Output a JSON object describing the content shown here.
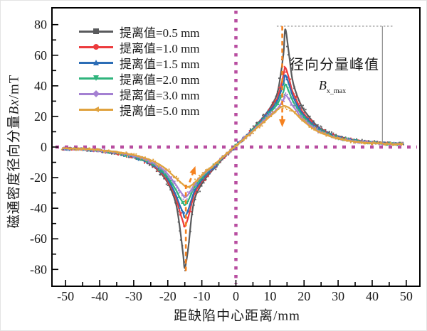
{
  "chart_data": {
    "type": "line",
    "title": "",
    "xlabel": "距缺陷中心距离/mm",
    "ylabel": "磁通密度径向分量Bx/mT",
    "ylabel_parts": {
      "prefix": "磁通密度径向分量",
      "math": "Bx",
      "suffix": "/mT"
    },
    "xlim": [
      -54,
      54
    ],
    "ylim": [
      -91,
      91
    ],
    "x_ticks": [
      -50,
      -40,
      -30,
      -20,
      -10,
      0,
      10,
      20,
      30,
      40,
      50
    ],
    "y_ticks": [
      -80,
      -60,
      -40,
      -20,
      0,
      20,
      40,
      60,
      80
    ],
    "x_minor_step": 5,
    "y_minor_step": 10,
    "grid": false,
    "legend_position": "top-left-inside",
    "axis_color": "#000000",
    "tick_label_color": "#1a1a1a",
    "crosshair": {
      "x": 0,
      "y": 0,
      "color": "#b84da0"
    },
    "annotation": {
      "label": "径向分量峰值",
      "symbol": "B",
      "symbol_sub": "x_max",
      "peak_level": 79,
      "dotted_line_x_range": [
        12,
        46
      ],
      "vertical_line_x": 43,
      "vertical_line_y_range": [
        2.6,
        79
      ],
      "color": "#8f8f8f"
    },
    "arrows": {
      "color": "#f58220",
      "items": [
        {
          "x1": 13.6,
          "y1": 79,
          "x2": 13.6,
          "y2": 13,
          "head": "end"
        },
        {
          "x1": -14.7,
          "y1": -81,
          "x2": -14.7,
          "y2": -24,
          "head": "none"
        },
        {
          "x1": -13.6,
          "y1": -23,
          "x2": -11.9,
          "y2": -12.5,
          "head": "end"
        }
      ]
    },
    "series": [
      {
        "name": "提离值=0.5 mm",
        "color": "#595a5c",
        "marker": "square",
        "x": [
          -51,
          -45,
          -40,
          -35,
          -30,
          -27,
          -24,
          -21,
          -19,
          -17.5,
          -16.5,
          -15.5,
          -15,
          -14,
          -13,
          -12,
          -10,
          -8,
          -6,
          -4,
          -2,
          0,
          2,
          4,
          6,
          8,
          10,
          12,
          13,
          14,
          14.5,
          15.5,
          16.5,
          17.5,
          19,
          21,
          24,
          27,
          30,
          35,
          40,
          45,
          49
        ],
        "y": [
          -1,
          -1.5,
          -2.5,
          -4,
          -6.5,
          -9,
          -13,
          -20,
          -28,
          -38,
          -52,
          -70,
          -79,
          -66,
          -45,
          -33,
          -24,
          -18,
          -13,
          -8,
          -3.5,
          0.8,
          5,
          9.5,
          14.5,
          19.5,
          25.5,
          34,
          45,
          62,
          77,
          62,
          45,
          36.5,
          28,
          21,
          13.5,
          9.5,
          7,
          4.5,
          3.2,
          2.5,
          2.2
        ]
      },
      {
        "name": "提离值=1.0 mm",
        "color": "#ec3b3d",
        "marker": "circle",
        "x": [
          -51,
          -45,
          -40,
          -35,
          -30,
          -27,
          -24,
          -21,
          -19,
          -17.5,
          -16.5,
          -15.5,
          -15,
          -14,
          -13,
          -12,
          -10,
          -8,
          -6,
          -4,
          -2,
          0,
          2,
          4,
          6,
          8,
          10,
          12,
          13,
          14,
          14.5,
          15.5,
          16.5,
          17.5,
          19,
          21,
          24,
          27,
          30,
          35,
          40,
          45,
          49
        ],
        "y": [
          -1,
          -1.5,
          -2.5,
          -4,
          -6.4,
          -8.9,
          -12.5,
          -19,
          -26,
          -34,
          -42,
          -49,
          -52,
          -46,
          -37,
          -29.5,
          -22.5,
          -17,
          -12.5,
          -7.8,
          -3.4,
          0.8,
          5,
          9.3,
          14,
          19,
          24.5,
          31,
          38,
          47.5,
          52,
          45.5,
          37,
          32,
          25,
          19,
          12.5,
          9,
          6.5,
          4.2,
          3,
          2.4,
          2.1
        ]
      },
      {
        "name": "提离值=1.5 mm",
        "color": "#2c6db6",
        "marker": "tri-up",
        "x": [
          -51,
          -45,
          -40,
          -35,
          -30,
          -27,
          -24,
          -21,
          -19,
          -17.5,
          -16.5,
          -15.5,
          -15,
          -14,
          -13,
          -12,
          -10,
          -8,
          -6,
          -4,
          -2,
          0,
          2,
          4,
          6,
          8,
          10,
          12,
          13,
          14,
          14.5,
          15.5,
          16.5,
          17.5,
          19,
          21,
          24,
          27,
          30,
          35,
          40,
          45,
          49
        ],
        "y": [
          -1,
          -1.5,
          -2.4,
          -3.9,
          -6.3,
          -8.7,
          -12,
          -18,
          -25,
          -32,
          -38,
          -43,
          -46,
          -41,
          -34,
          -28,
          -21.5,
          -16.5,
          -12,
          -7.5,
          -3.3,
          0.8,
          4.9,
          9.1,
          13.7,
          18.5,
          23.8,
          29.5,
          35,
          42,
          47,
          41.5,
          34.5,
          29.5,
          23.5,
          18,
          12,
          8.7,
          6.3,
          4,
          2.9,
          2.3,
          2
        ]
      },
      {
        "name": "提离值=2.0 mm",
        "color": "#2fb47c",
        "marker": "tri-down",
        "x": [
          -51,
          -45,
          -40,
          -35,
          -30,
          -27,
          -24,
          -21,
          -19,
          -17.5,
          -16.5,
          -15.5,
          -15,
          -14,
          -13,
          -12,
          -10,
          -8,
          -6,
          -4,
          -2,
          0,
          2,
          4,
          6,
          8,
          10,
          12,
          13,
          14,
          14.5,
          15.5,
          16.5,
          17.5,
          19,
          21,
          24,
          27,
          30,
          35,
          40,
          45,
          49
        ],
        "y": [
          -0.9,
          -1.4,
          -2.3,
          -3.7,
          -6,
          -8.3,
          -11.5,
          -17,
          -23,
          -28.5,
          -33,
          -36.5,
          -38,
          -35,
          -30,
          -25.5,
          -20,
          -15.5,
          -11.5,
          -7.2,
          -3.2,
          0.8,
          4.8,
          8.9,
          13.3,
          17.8,
          22.5,
          27.5,
          31.5,
          36.5,
          41,
          36.5,
          31,
          27,
          22,
          17,
          11.5,
          8.3,
          6,
          3.9,
          2.8,
          2.2,
          2
        ]
      },
      {
        "name": "提离值=3.0 mm",
        "color": "#a480d2",
        "marker": "diamond",
        "x": [
          -51,
          -45,
          -40,
          -35,
          -30,
          -27,
          -24,
          -21,
          -19,
          -17.5,
          -16.5,
          -15.5,
          -15,
          -14,
          -13,
          -12,
          -10,
          -8,
          -6,
          -4,
          -2,
          0,
          2,
          4,
          6,
          8,
          10,
          12,
          13,
          14,
          14.5,
          15.5,
          16.5,
          17.5,
          19,
          21,
          24,
          27,
          30,
          35,
          40,
          45,
          49
        ],
        "y": [
          -0.9,
          -1.3,
          -2.2,
          -3.5,
          -5.7,
          -7.8,
          -10.8,
          -15.5,
          -20.5,
          -25,
          -28.5,
          -31.5,
          -33,
          -31,
          -27.5,
          -24,
          -19,
          -15,
          -11,
          -7,
          -3.1,
          0.8,
          4.7,
          8.6,
          12.8,
          17,
          21,
          24.5,
          27.5,
          31,
          34,
          31.5,
          27.5,
          24.5,
          20,
          15.8,
          10.8,
          7.9,
          5.7,
          3.7,
          2.7,
          2.1,
          1.9
        ]
      },
      {
        "name": "提离值=5.0 mm",
        "color": "#e0a23e",
        "marker": "tri-left",
        "x": [
          -51,
          -45,
          -40,
          -35,
          -30,
          -27,
          -24,
          -21,
          -19,
          -17.5,
          -16.5,
          -15.5,
          -15,
          -14,
          -13,
          -12,
          -10,
          -8,
          -6,
          -4,
          -2,
          0,
          2,
          4,
          6,
          8,
          10,
          12,
          13,
          14,
          14.5,
          15.5,
          16.5,
          17.5,
          19,
          21,
          24,
          27,
          30,
          35,
          40,
          45,
          49
        ],
        "y": [
          -0.8,
          -1.2,
          -2,
          -3.2,
          -5.2,
          -7,
          -9.5,
          -13.5,
          -17.5,
          -20.5,
          -22.5,
          -24.5,
          -25.5,
          -26,
          -25,
          -23,
          -18.5,
          -14.5,
          -10.8,
          -6.8,
          -3,
          0.8,
          4.6,
          8.3,
          12.2,
          16,
          20,
          24,
          25.8,
          26.8,
          26.8,
          25.8,
          24,
          22,
          18.5,
          14.8,
          10.2,
          7.5,
          5.4,
          3.5,
          2.6,
          2,
          1.8
        ]
      }
    ]
  }
}
